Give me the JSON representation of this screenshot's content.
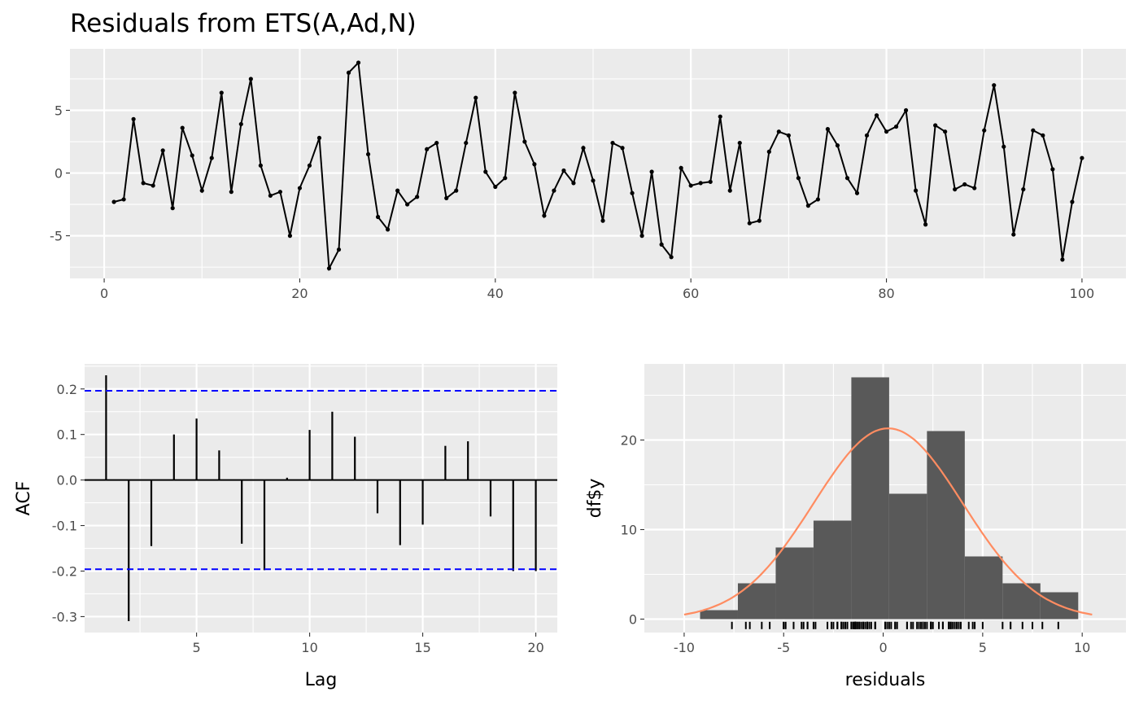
{
  "chart_data": [
    {
      "type": "line",
      "title": "Residuals from ETS(A,Ad,N)",
      "xlabel": "",
      "ylabel": "",
      "xlim": [
        -3.5,
        104.5
      ],
      "ylim": [
        -8.4,
        9.9
      ],
      "x_ticks": [
        0,
        20,
        40,
        60,
        80,
        100
      ],
      "x_tick_labels": [
        "0",
        "20",
        "40",
        "60",
        "80",
        "100"
      ],
      "y_ticks": [
        -5,
        0,
        5
      ],
      "y_tick_labels": [
        "-5",
        "0",
        "5"
      ],
      "grid": true,
      "points": true,
      "line_color": "#000000",
      "x": [
        1,
        2,
        3,
        4,
        5,
        6,
        7,
        8,
        9,
        10,
        11,
        12,
        13,
        14,
        15,
        16,
        17,
        18,
        19,
        20,
        21,
        22,
        23,
        24,
        25,
        26,
        27,
        28,
        29,
        30,
        31,
        32,
        33,
        34,
        35,
        36,
        37,
        38,
        39,
        40,
        41,
        42,
        43,
        44,
        45,
        46,
        47,
        48,
        49,
        50,
        51,
        52,
        53,
        54,
        55,
        56,
        57,
        58,
        59,
        60,
        61,
        62,
        63,
        64,
        65,
        66,
        67,
        68,
        69,
        70,
        71,
        72,
        73,
        74,
        75,
        76,
        77,
        78,
        79,
        80,
        81,
        82,
        83,
        84,
        85,
        86,
        87,
        88,
        89,
        90,
        91,
        92,
        93,
        94,
        95,
        96,
        97,
        98,
        99,
        100
      ],
      "y": [
        -2.3,
        -2.1,
        4.3,
        -0.8,
        -1.0,
        1.8,
        -2.8,
        3.6,
        1.4,
        -1.4,
        1.2,
        6.4,
        -1.5,
        3.9,
        7.5,
        0.6,
        -1.8,
        -1.5,
        -5.0,
        -1.2,
        0.6,
        2.8,
        -7.6,
        -6.1,
        8.0,
        8.8,
        1.5,
        -3.5,
        -4.5,
        -1.4,
        -2.5,
        -1.9,
        1.9,
        2.4,
        -2.0,
        -1.4,
        2.4,
        6.0,
        0.1,
        -1.1,
        -0.4,
        6.4,
        2.5,
        0.7,
        -3.4,
        -1.4,
        0.2,
        -0.8,
        2.0,
        -0.6,
        -3.8,
        2.4,
        2.0,
        -1.6,
        -5.0,
        0.1,
        -5.7,
        -6.7,
        0.4,
        -1.0,
        -0.8,
        -0.7,
        4.5,
        -1.4,
        2.4,
        -4.0,
        -3.8,
        1.7,
        3.3,
        3.0,
        -0.4,
        -2.6,
        -2.1,
        3.5,
        2.2,
        -0.4,
        -1.6,
        3.0,
        4.6,
        3.3,
        3.7,
        5.0,
        -1.4,
        -4.1,
        3.8,
        3.3,
        -1.3,
        -0.9,
        -1.2,
        3.4,
        7.0,
        2.1,
        -4.9,
        -1.3,
        3.4,
        3.0,
        0.3,
        -6.9,
        -2.3,
        1.2
      ]
    },
    {
      "type": "bar",
      "subtype": "acf",
      "xlabel": "Lag",
      "ylabel": "ACF",
      "xlim": [
        0.05,
        20.95
      ],
      "ylim": [
        -0.335,
        0.255
      ],
      "x_ticks": [
        5,
        10,
        15,
        20
      ],
      "x_tick_labels": [
        "5",
        "10",
        "15",
        "20"
      ],
      "y_ticks": [
        -0.3,
        -0.2,
        -0.1,
        0.0,
        0.1,
        0.2
      ],
      "y_tick_labels": [
        "-0.3",
        "-0.2",
        "-0.1",
        "0.0",
        "0.1",
        "0.2"
      ],
      "grid": true,
      "lags": [
        1,
        2,
        3,
        4,
        5,
        6,
        7,
        8,
        9,
        10,
        11,
        12,
        13,
        14,
        15,
        16,
        17,
        18,
        19,
        20
      ],
      "values": [
        0.23,
        -0.31,
        -0.145,
        0.1,
        0.135,
        0.065,
        -0.14,
        -0.198,
        0.005,
        0.11,
        0.15,
        0.095,
        -0.073,
        -0.143,
        -0.098,
        0.075,
        0.085,
        -0.08,
        -0.2,
        -0.2
      ],
      "confidence_limit": 0.196,
      "ci_color": "#0000ff"
    },
    {
      "type": "histogram",
      "xlabel": "residuals",
      "ylabel": "df$y",
      "xlim": [
        -12.0,
        12.2
      ],
      "ylim": [
        -1.5,
        28.5
      ],
      "x_ticks": [
        -10,
        -5,
        0,
        5,
        10
      ],
      "x_tick_labels": [
        "-10",
        "-5",
        "0",
        "5",
        "10"
      ],
      "y_ticks": [
        0,
        10,
        20
      ],
      "y_tick_labels": [
        "0",
        "10",
        "20"
      ],
      "grid": true,
      "bin_edges": [
        -9.2,
        -7.3,
        -5.4,
        -3.5,
        -1.6,
        0.3,
        2.2,
        4.1,
        6.0,
        7.9,
        9.8
      ],
      "bin_edges_note": "",
      "counts": [
        1,
        4,
        8,
        11,
        27,
        14,
        21,
        7,
        4,
        3
      ],
      "bar_color": "#595959",
      "normal_curve": {
        "mean": 0.25,
        "sd": 3.75,
        "peak": 21.3,
        "from": -10.0,
        "to": 10.5,
        "color": "#ff8c61"
      },
      "rug_color": "#000000"
    }
  ]
}
